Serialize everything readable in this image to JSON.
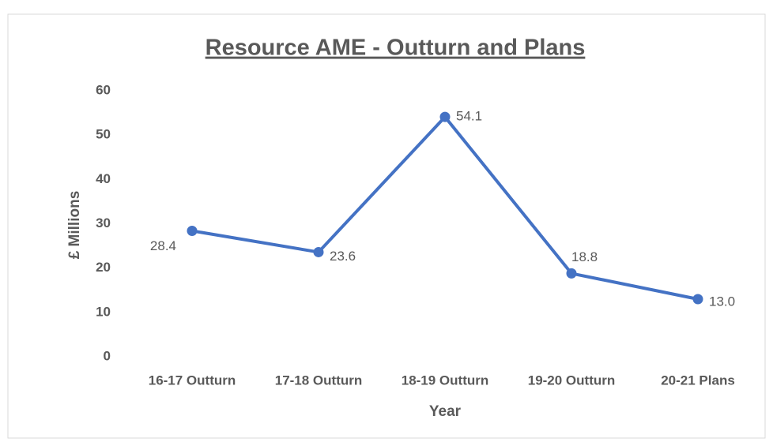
{
  "chart_data": {
    "type": "line",
    "title": "Resource AME - Outturn and Plans",
    "xlabel": "Year",
    "ylabel": "£ Millions",
    "categories": [
      "16-17 Outturn",
      "17-18 Outturn",
      "18-19 Outturn",
      "19-20 Outturn",
      "20-21 Plans"
    ],
    "series": [
      {
        "name": "Resource AME",
        "color": "#4472c4",
        "values": [
          28.4,
          23.6,
          54.1,
          18.8,
          13.0
        ],
        "value_labels": [
          "28.4",
          "23.6",
          "54.1",
          "18.8",
          "13.0"
        ]
      }
    ],
    "ylim": [
      0,
      60
    ],
    "yticks": [
      0,
      10,
      20,
      30,
      40,
      50,
      60
    ],
    "grid": false
  }
}
